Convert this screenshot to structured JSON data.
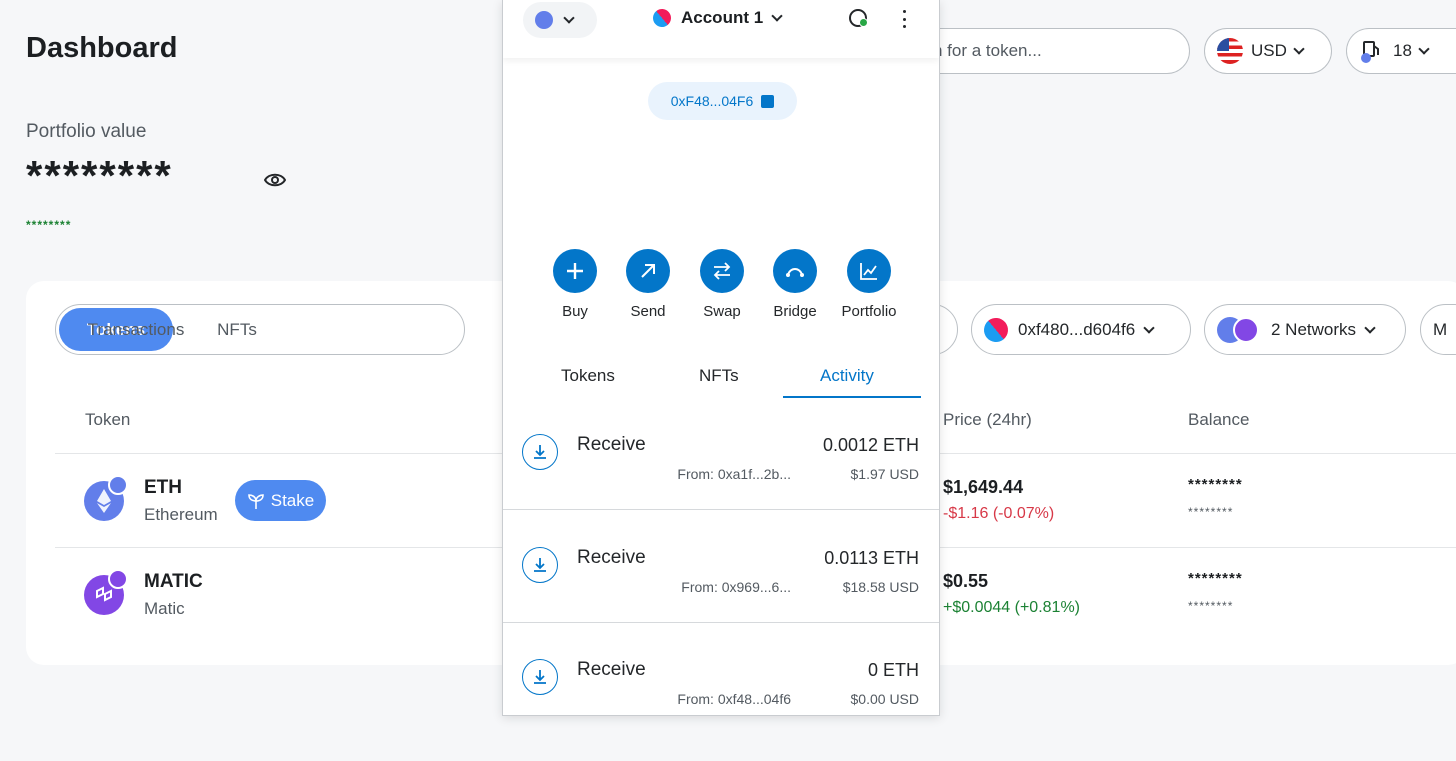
{
  "dashboard": {
    "title": "Dashboard",
    "search_placeholder": "n for a token...",
    "currency": "USD",
    "gas_value": "18",
    "portfolio_label": "Portfolio value",
    "portfolio_value": "********",
    "portfolio_change": "********",
    "tabs": [
      "Tokens",
      "NFTs",
      "Transactions"
    ],
    "filters": {
      "account": "0xf480...d604f6",
      "networks": "2 Networks",
      "more": "M"
    },
    "columns": {
      "token": "Token",
      "price": "Price (24hr)",
      "balance": "Balance"
    },
    "tokens": [
      {
        "symbol": "ETH",
        "name": "Ethereum",
        "action": "Stake",
        "price": "$1,649.44",
        "change": "-$1.16  (-0.07%)",
        "balance": "********",
        "balance_fiat": "********"
      },
      {
        "symbol": "MATIC",
        "name": "Matic",
        "price": "$0.55",
        "change": "+$0.0044  (+0.81%)",
        "balance": "********",
        "balance_fiat": "********"
      }
    ]
  },
  "popup": {
    "account_name": "Account 1",
    "address": "0xF48...04F6",
    "actions": [
      "Buy",
      "Send",
      "Swap",
      "Bridge",
      "Portfolio"
    ],
    "tabs": [
      "Tokens",
      "NFTs",
      "Activity"
    ],
    "active_tab": "Activity",
    "transactions": [
      {
        "type": "Receive",
        "amount": "0.0012 ETH",
        "from": "From: 0xa1f...2b...",
        "usd": "$1.97 USD"
      },
      {
        "type": "Receive",
        "amount": "0.0113 ETH",
        "from": "From: 0x969...6...",
        "usd": "$18.58 USD"
      },
      {
        "type": "Receive",
        "amount": "0 ETH",
        "from": "From: 0xf48...04f6",
        "usd": "$0.00 USD"
      }
    ]
  },
  "colors": {
    "primary": "#0376c9",
    "tab_active": "#4f8af0",
    "negative": "#d73847",
    "positive": "#1c8234",
    "eth": "#627eea",
    "matic": "#8247e5"
  }
}
